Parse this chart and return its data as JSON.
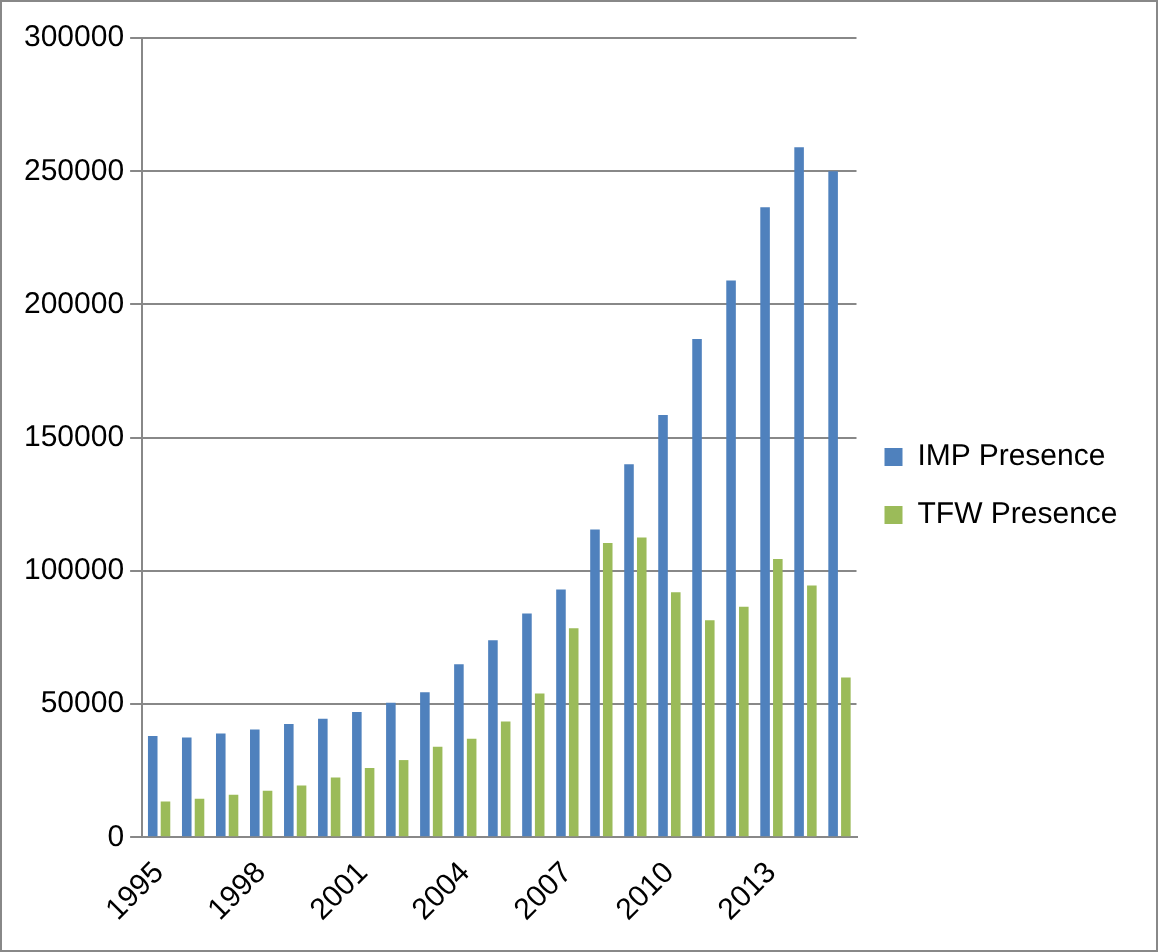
{
  "chart_data": {
    "type": "bar",
    "categories": [
      "1995",
      null,
      null,
      "1998",
      null,
      null,
      "2001",
      null,
      null,
      "2004",
      null,
      null,
      "2007",
      null,
      null,
      "2010",
      null,
      null,
      "2013",
      null,
      null
    ],
    "series": [
      {
        "name": "IMP Presence",
        "color": "#4f81bd",
        "values": [
          38000,
          37500,
          39000,
          40500,
          42500,
          44500,
          47000,
          50500,
          54500,
          65000,
          74000,
          84000,
          93000,
          115500,
          140000,
          158500,
          187000,
          209000,
          236500,
          259000,
          250000
        ]
      },
      {
        "name": "TFW Presence",
        "color": "#9bbb59",
        "values": [
          13500,
          14500,
          16000,
          17500,
          19500,
          22500,
          26000,
          29000,
          34000,
          37000,
          43500,
          54000,
          78500,
          110500,
          112500,
          92000,
          81500,
          86500,
          104500,
          94500,
          60000
        ]
      }
    ],
    "ylim": [
      0,
      300000
    ],
    "yticks": [
      0,
      50000,
      100000,
      150000,
      200000,
      250000,
      300000
    ],
    "grid": "y",
    "legend": "right"
  }
}
